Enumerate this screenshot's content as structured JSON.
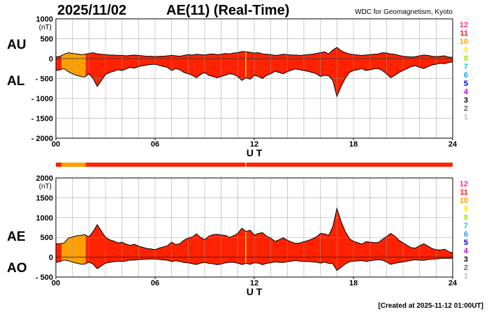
{
  "header": {
    "date": "2025/11/02",
    "title": "AE(11) (Real-Time)",
    "source": "WDC for Geomagnetism, Kyoto"
  },
  "footer": {
    "created": "[Created at 2025-11-12 01:00UT]"
  },
  "colors": {
    "red": "#ff2200",
    "orange": "#ffa000",
    "yellow": "#ffd500",
    "grid": "#9a9a9a"
  },
  "legend_colors": [
    "#ff2d8c",
    "#ff1a1a",
    "#ffa000",
    "#ffe600",
    "#99e600",
    "#00cccc",
    "#2299ff",
    "#0000cc",
    "#cc00cc",
    "#000000",
    "#666666",
    "#bbbbbb"
  ],
  "chart_data": [
    {
      "type": "area",
      "panel": "AU/AL",
      "left_labels": [
        "AU",
        "AL"
      ],
      "unit": "(nT)",
      "xlabel": "U T",
      "xlim": [
        0,
        24
      ],
      "xticks": [
        "00",
        "06",
        "12",
        "18",
        "24"
      ],
      "ylim": [
        -2000,
        1000
      ],
      "yticks": [
        "1000",
        "500",
        "0",
        "- 500",
        "- 1000",
        "- 1500",
        "- 2000"
      ],
      "grid": true,
      "legend": [
        "12",
        "11",
        "10",
        "9",
        "8",
        "7",
        "6",
        "5",
        "4",
        "3",
        "2",
        "1"
      ],
      "legend_placement": "right",
      "station_segments": [
        {
          "from": 0,
          "to": 0.35,
          "stations": 11
        },
        {
          "from": 0.35,
          "to": 1.8,
          "stations": 10
        },
        {
          "from": 1.8,
          "to": 11.45,
          "stations": 11
        },
        {
          "from": 11.45,
          "to": 11.52,
          "stations": 9
        },
        {
          "from": 11.52,
          "to": 24,
          "stations": 11
        }
      ],
      "x": [
        0,
        0.25,
        0.5,
        0.75,
        1,
        1.25,
        1.5,
        1.75,
        2,
        2.25,
        2.5,
        2.75,
        3,
        3.25,
        3.5,
        3.75,
        4,
        4.25,
        4.5,
        4.75,
        5,
        5.25,
        5.5,
        5.75,
        6,
        6.25,
        6.5,
        6.75,
        7,
        7.25,
        7.5,
        7.75,
        8,
        8.25,
        8.5,
        8.75,
        9,
        9.25,
        9.5,
        9.75,
        10,
        10.25,
        10.5,
        10.75,
        11,
        11.25,
        11.5,
        11.75,
        12,
        12.25,
        12.5,
        12.75,
        13,
        13.25,
        13.5,
        13.75,
        14,
        14.25,
        14.5,
        14.75,
        15,
        15.25,
        15.5,
        15.75,
        16,
        16.25,
        16.5,
        16.75,
        17,
        17.25,
        17.5,
        17.75,
        18,
        18.25,
        18.5,
        18.75,
        19,
        19.25,
        19.5,
        19.75,
        20,
        20.25,
        20.5,
        20.75,
        21,
        21.25,
        21.5,
        21.75,
        22,
        22.25,
        22.5,
        22.75,
        23,
        23.25,
        23.5,
        23.75,
        24
      ],
      "series": [
        {
          "name": "AU",
          "values": [
            40,
            60,
            110,
            150,
            130,
            120,
            100,
            110,
            130,
            150,
            120,
            110,
            100,
            90,
            90,
            80,
            80,
            70,
            80,
            90,
            80,
            70,
            60,
            60,
            50,
            60,
            60,
            70,
            80,
            70,
            60,
            80,
            100,
            90,
            110,
            100,
            90,
            110,
            120,
            100,
            110,
            130,
            120,
            140,
            150,
            180,
            170,
            160,
            140,
            150,
            120,
            110,
            100,
            80,
            90,
            110,
            100,
            90,
            90,
            80,
            90,
            100,
            110,
            130,
            150,
            170,
            120,
            220,
            280,
            200,
            150,
            120,
            100,
            90,
            80,
            90,
            100,
            110,
            120,
            150,
            140,
            120,
            110,
            80,
            60,
            50,
            40,
            50,
            70,
            90,
            80,
            60,
            50,
            60,
            70,
            40,
            30
          ]
        },
        {
          "name": "AL",
          "values": [
            -300,
            -280,
            -250,
            -330,
            -380,
            -420,
            -450,
            -460,
            -380,
            -500,
            -700,
            -550,
            -400,
            -350,
            -320,
            -280,
            -300,
            -260,
            -220,
            -240,
            -200,
            -180,
            -160,
            -150,
            -140,
            -170,
            -200,
            -220,
            -300,
            -250,
            -280,
            -350,
            -380,
            -420,
            -480,
            -400,
            -350,
            -420,
            -450,
            -480,
            -450,
            -420,
            -380,
            -400,
            -450,
            -550,
            -480,
            -520,
            -420,
            -450,
            -500,
            -420,
            -380,
            -320,
            -350,
            -380,
            -330,
            -290,
            -260,
            -280,
            -300,
            -320,
            -350,
            -380,
            -450,
            -420,
            -430,
            -550,
            -950,
            -700,
            -500,
            -350,
            -300,
            -280,
            -250,
            -300,
            -280,
            -260,
            -250,
            -300,
            -380,
            -480,
            -420,
            -350,
            -300,
            -250,
            -200,
            -180,
            -220,
            -250,
            -200,
            -160,
            -140,
            -120,
            -130,
            -100,
            -80
          ]
        }
      ]
    },
    {
      "type": "area",
      "panel": "AE/AO",
      "left_labels": [
        "AE",
        "AO"
      ],
      "unit": "(nT)",
      "xlabel": "U T",
      "xlim": [
        0,
        24
      ],
      "xticks": [
        "00",
        "06",
        "12",
        "18",
        "24"
      ],
      "ylim": [
        -500,
        2000
      ],
      "yticks": [
        "2000",
        "1500",
        "1000",
        "500",
        "0",
        "- 500"
      ],
      "grid": true,
      "legend": [
        "12",
        "11",
        "10",
        "9",
        "8",
        "7",
        "6",
        "5",
        "4",
        "3",
        "2",
        "1"
      ],
      "legend_placement": "right",
      "x": [
        0,
        0.25,
        0.5,
        0.75,
        1,
        1.25,
        1.5,
        1.75,
        2,
        2.25,
        2.5,
        2.75,
        3,
        3.25,
        3.5,
        3.75,
        4,
        4.25,
        4.5,
        4.75,
        5,
        5.25,
        5.5,
        5.75,
        6,
        6.25,
        6.5,
        6.75,
        7,
        7.25,
        7.5,
        7.75,
        8,
        8.25,
        8.5,
        8.75,
        9,
        9.25,
        9.5,
        9.75,
        10,
        10.25,
        10.5,
        10.75,
        11,
        11.25,
        11.5,
        11.75,
        12,
        12.25,
        12.5,
        12.75,
        13,
        13.25,
        13.5,
        13.75,
        14,
        14.25,
        14.5,
        14.75,
        15,
        15.25,
        15.5,
        15.75,
        16,
        16.25,
        16.5,
        16.75,
        17,
        17.25,
        17.5,
        17.75,
        18,
        18.25,
        18.5,
        18.75,
        19,
        19.25,
        19.5,
        19.75,
        20,
        20.25,
        20.5,
        20.75,
        21,
        21.25,
        21.5,
        21.75,
        22,
        22.25,
        22.5,
        22.75,
        23,
        23.25,
        23.5,
        23.75,
        24
      ],
      "series": [
        {
          "name": "AE",
          "values": [
            340,
            340,
            360,
            480,
            510,
            540,
            550,
            570,
            510,
            650,
            820,
            660,
            500,
            440,
            410,
            360,
            380,
            330,
            300,
            330,
            280,
            250,
            220,
            210,
            190,
            230,
            260,
            290,
            380,
            320,
            340,
            430,
            480,
            510,
            590,
            500,
            440,
            530,
            570,
            580,
            560,
            550,
            500,
            540,
            600,
            730,
            650,
            680,
            560,
            600,
            620,
            530,
            480,
            400,
            440,
            490,
            430,
            380,
            350,
            360,
            390,
            420,
            460,
            510,
            600,
            590,
            550,
            770,
            1230,
            900,
            650,
            470,
            400,
            370,
            330,
            390,
            380,
            370,
            370,
            450,
            520,
            600,
            530,
            430,
            360,
            300,
            240,
            230,
            290,
            340,
            280,
            220,
            190,
            180,
            200,
            140,
            110
          ]
        },
        {
          "name": "AO",
          "values": [
            -130,
            -110,
            -70,
            -90,
            -125,
            -150,
            -175,
            -175,
            -125,
            -175,
            -290,
            -220,
            -150,
            -130,
            -115,
            -100,
            -110,
            -95,
            -70,
            -75,
            -60,
            -55,
            -50,
            -45,
            -45,
            -55,
            -70,
            -75,
            -110,
            -90,
            -110,
            -135,
            -140,
            -165,
            -185,
            -150,
            -130,
            -155,
            -165,
            -190,
            -170,
            -145,
            -130,
            -130,
            -150,
            -185,
            -155,
            -180,
            -140,
            -150,
            -190,
            -155,
            -140,
            -120,
            -130,
            -135,
            -115,
            -100,
            -85,
            -100,
            -105,
            -110,
            -120,
            -125,
            -150,
            -125,
            -155,
            -165,
            -335,
            -250,
            -175,
            -115,
            -100,
            -95,
            -85,
            -105,
            -90,
            -75,
            -65,
            -75,
            -120,
            -180,
            -155,
            -135,
            -120,
            -100,
            -80,
            -65,
            -75,
            -80,
            -60,
            -50,
            -45,
            -30,
            -30,
            -30,
            -25
          ]
        }
      ]
    }
  ]
}
